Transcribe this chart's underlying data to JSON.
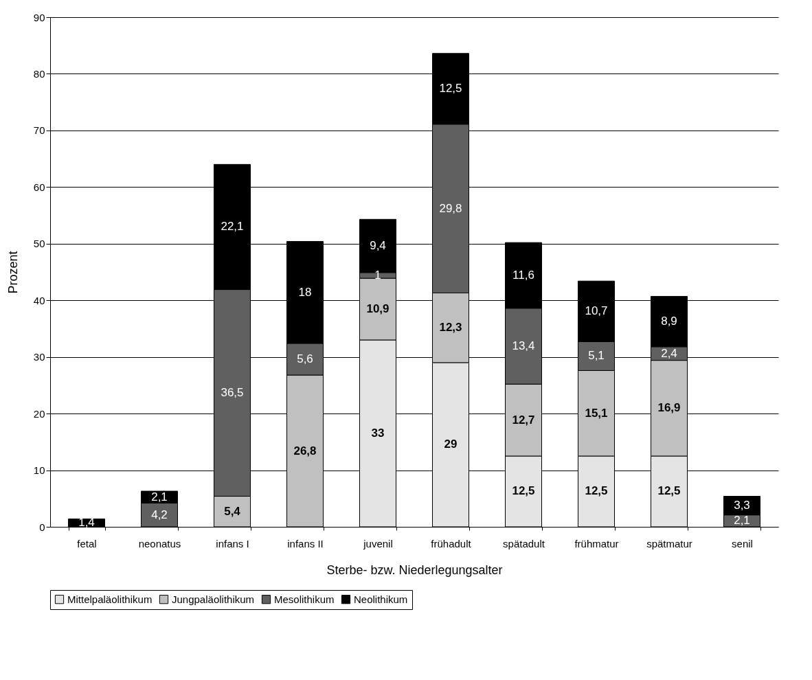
{
  "chart_data": {
    "type": "bar",
    "stacked": true,
    "xlabel": "Sterbe- bzw. Niederlegungsalter",
    "ylabel": "Prozent",
    "categories": [
      "fetal",
      "neonatus",
      "infans I",
      "infans II",
      "juvenil",
      "frühadult",
      "spätadult",
      "frühmatur",
      "spätmatur",
      "senil"
    ],
    "series": [
      {
        "name": "Mittelpaläolithikum",
        "color": "#e4e4e4",
        "values": [
          null,
          null,
          null,
          null,
          33,
          29,
          12.5,
          12.5,
          12.5,
          null
        ],
        "value_labels": [
          null,
          null,
          null,
          null,
          "33",
          "29",
          "12,5",
          "12,5",
          "12,5",
          null
        ]
      },
      {
        "name": "Jungpaläolithikum",
        "color": "#c0c0c0",
        "values": [
          null,
          null,
          5.4,
          26.8,
          10.9,
          12.3,
          12.7,
          15.1,
          16.9,
          null
        ],
        "value_labels": [
          null,
          null,
          "5,4",
          "26,8",
          "10,9",
          "12,3",
          "12,7",
          "15,1",
          "16,9",
          null
        ]
      },
      {
        "name": "Mesolithikum",
        "color": "#606060",
        "values": [
          null,
          4.2,
          36.5,
          5.6,
          1,
          29.8,
          13.4,
          5.1,
          2.4,
          2.1
        ],
        "value_labels": [
          null,
          "4,2",
          "36,5",
          "5,6",
          "1",
          "29,8",
          "13,4",
          "5,1",
          "2,4",
          "2,1"
        ]
      },
      {
        "name": "Neolithikum",
        "color": "#000000",
        "values": [
          1.4,
          2.1,
          22.1,
          18,
          9.4,
          12.5,
          11.6,
          10.7,
          8.9,
          3.3
        ],
        "value_labels": [
          "1,4",
          "2,1",
          "22,1",
          "18",
          "9,4",
          "12,5",
          "11,6",
          "10,7",
          "8,9",
          "3,3"
        ]
      }
    ],
    "ylim": [
      0,
      90
    ],
    "yticks": [
      0,
      10,
      20,
      30,
      40,
      50,
      60,
      70,
      80,
      90
    ],
    "grid": "y",
    "legend": "bottom"
  }
}
